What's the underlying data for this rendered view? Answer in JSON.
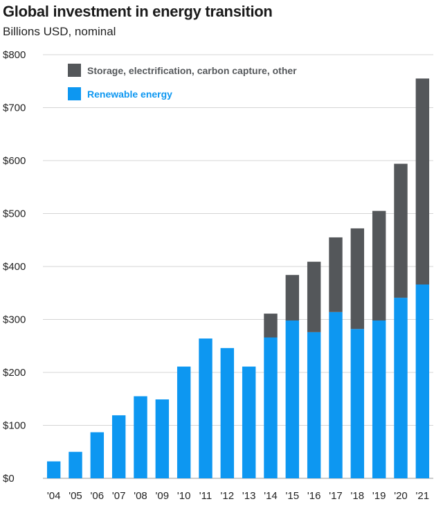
{
  "title": "Global investment in energy transition",
  "subtitle": "Billions USD, nominal",
  "chart_data": {
    "type": "bar",
    "stacked": true,
    "title": "Global investment in energy transition",
    "subtitle": "Billions USD, nominal",
    "xlabel": "",
    "ylabel": "",
    "ylim": [
      0,
      800
    ],
    "y_ticks": [
      0,
      100,
      200,
      300,
      400,
      500,
      600,
      700,
      800
    ],
    "y_tick_labels": [
      "$0",
      "$100",
      "$200",
      "$300",
      "$400",
      "$500",
      "$600",
      "$700",
      "$800"
    ],
    "grid": true,
    "legend_position": "top-left",
    "categories": [
      "'04",
      "'05",
      "'06",
      "'07",
      "'08",
      "'09",
      "'10",
      "'11",
      "'12",
      "'13",
      "'14",
      "'15",
      "'16",
      "'17",
      "'18",
      "'19",
      "'20",
      "'21"
    ],
    "series": [
      {
        "name": "Renewable energy",
        "color": "#0d97f1",
        "values": [
          32,
          50,
          87,
          119,
          155,
          149,
          211,
          264,
          246,
          211,
          266,
          298,
          276,
          314,
          282,
          298,
          341,
          366
        ]
      },
      {
        "name": "Storage, electrification, carbon capture, other",
        "color": "#54575a",
        "values": [
          0,
          0,
          0,
          0,
          0,
          0,
          0,
          0,
          0,
          0,
          45,
          86,
          133,
          141,
          190,
          207,
          253,
          389
        ]
      }
    ],
    "legend_order": [
      "Storage, electrification, carbon capture, other",
      "Renewable energy"
    ]
  }
}
